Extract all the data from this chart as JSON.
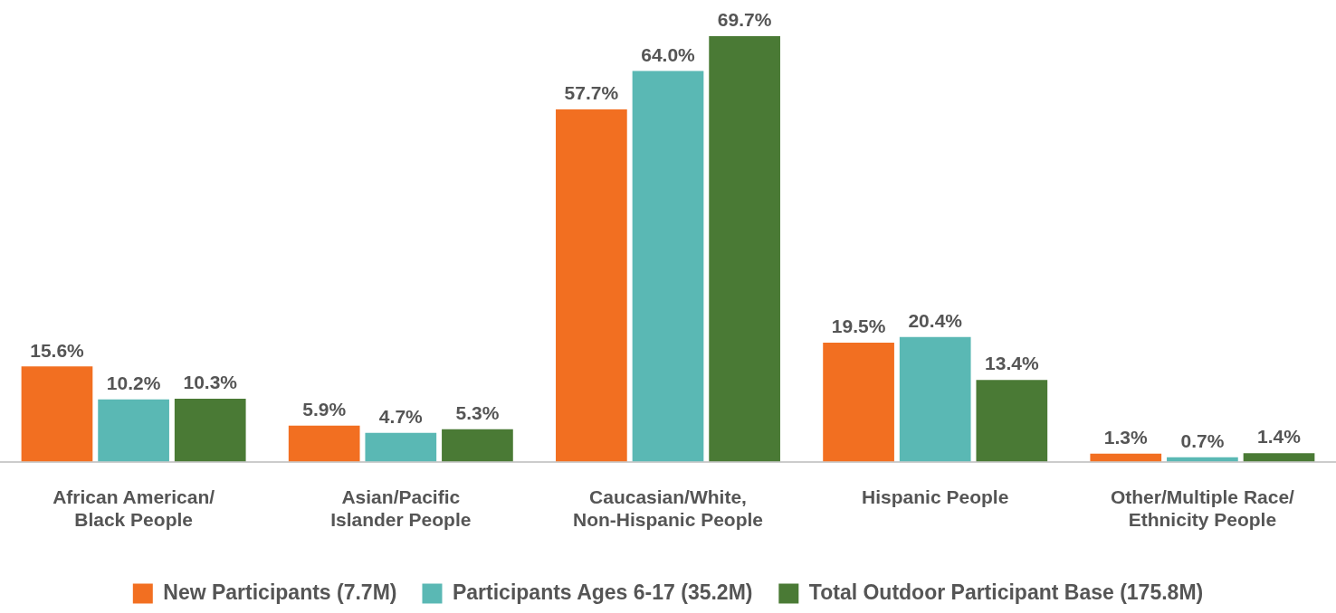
{
  "chart_data": {
    "type": "bar",
    "categories": [
      "African American/\nBlack People",
      "Asian/Pacific\nIslander People",
      "Caucasian/White,\nNon-Hispanic People",
      "Hispanic People",
      "Other/Multiple Race/\nEthnicity People"
    ],
    "series": [
      {
        "name": "New Participants (7.7M)",
        "color": "#f26f21",
        "values": [
          15.6,
          5.9,
          57.7,
          19.5,
          1.3
        ],
        "value_labels": [
          "15.6%",
          "5.9%",
          "57.7%",
          "19.5%",
          "1.3%"
        ]
      },
      {
        "name": "Participants Ages 6-17 (35.2M)",
        "color": "#5ab8b4",
        "values": [
          10.2,
          4.7,
          64.0,
          20.4,
          0.7
        ],
        "value_labels": [
          "10.2%",
          "4.7%",
          "64.0%",
          "20.4%",
          "0.7%"
        ]
      },
      {
        "name": "Total Outdoor Participant Base (175.8M)",
        "color": "#4a7a35",
        "values": [
          10.3,
          5.3,
          69.7,
          13.4,
          1.4
        ],
        "value_labels": [
          "10.3%",
          "5.3%",
          "69.7%",
          "13.4%",
          "1.4%"
        ]
      }
    ],
    "legend": "bottom",
    "grid": false
  }
}
